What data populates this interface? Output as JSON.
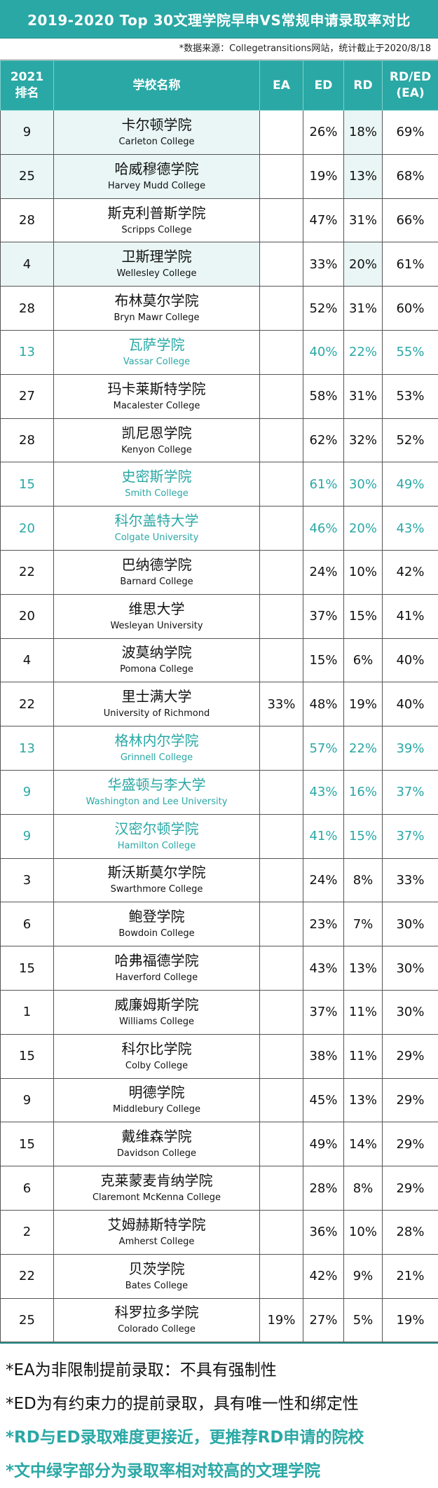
{
  "title": "2019-2020 Top 30文理学院早申VS常规申请录取率对比",
  "source": "*数据来源：Collegetransitions网站，统计截止于2020/8/18",
  "headers": {
    "rank_line1": "2021",
    "rank_line2": "排名",
    "name": "学校名称",
    "ea": "EA",
    "ed": "ED",
    "rd": "RD",
    "ratio_line1": "RD/ED",
    "ratio_line2": "(EA)"
  },
  "colors": {
    "teal": "#2aa8a5",
    "light_teal": "#e9f6f5"
  },
  "rows": [
    {
      "rank": "9",
      "cn": "卡尔顿学院",
      "en": "Carleton College",
      "ea": "",
      "ed": "26%",
      "rd": "18%",
      "ratio": "69%",
      "teal": false,
      "light": true
    },
    {
      "rank": "25",
      "cn": "哈威穆德学院",
      "en": "Harvey Mudd College",
      "ea": "",
      "ed": "19%",
      "rd": "13%",
      "ratio": "68%",
      "teal": false,
      "light": true
    },
    {
      "rank": "28",
      "cn": "斯克利普斯学院",
      "en": "Scripps College",
      "ea": "",
      "ed": "47%",
      "rd": "31%",
      "ratio": "66%",
      "teal": false,
      "light": false
    },
    {
      "rank": "4",
      "cn": "卫斯理学院",
      "en": "Wellesley College",
      "ea": "",
      "ed": "33%",
      "rd": "20%",
      "ratio": "61%",
      "teal": false,
      "light": true
    },
    {
      "rank": "28",
      "cn": "布林莫尔学院",
      "en": "Bryn Mawr College",
      "ea": "",
      "ed": "52%",
      "rd": "31%",
      "ratio": "60%",
      "teal": false,
      "light": false
    },
    {
      "rank": "13",
      "cn": "瓦萨学院",
      "en": "Vassar College",
      "ea": "",
      "ed": "40%",
      "rd": "22%",
      "ratio": "55%",
      "teal": true,
      "light": false
    },
    {
      "rank": "27",
      "cn": "玛卡莱斯特学院",
      "en": "Macalester College",
      "ea": "",
      "ed": "58%",
      "rd": "31%",
      "ratio": "53%",
      "teal": false,
      "light": false
    },
    {
      "rank": "28",
      "cn": "凯尼恩学院",
      "en": "Kenyon College",
      "ea": "",
      "ed": "62%",
      "rd": "32%",
      "ratio": "52%",
      "teal": false,
      "light": false
    },
    {
      "rank": "15",
      "cn": "史密斯学院",
      "en": "Smith College",
      "ea": "",
      "ed": "61%",
      "rd": "30%",
      "ratio": "49%",
      "teal": true,
      "light": false
    },
    {
      "rank": "20",
      "cn": "科尔盖特大学",
      "en": "Colgate University",
      "ea": "",
      "ed": "46%",
      "rd": "20%",
      "ratio": "43%",
      "teal": true,
      "light": false
    },
    {
      "rank": "22",
      "cn": "巴纳德学院",
      "en": "Barnard College",
      "ea": "",
      "ed": "24%",
      "rd": "10%",
      "ratio": "42%",
      "teal": false,
      "light": false
    },
    {
      "rank": "20",
      "cn": "维思大学",
      "en": "Wesleyan University",
      "ea": "",
      "ed": "37%",
      "rd": "15%",
      "ratio": "41%",
      "teal": false,
      "light": false
    },
    {
      "rank": "4",
      "cn": "波莫纳学院",
      "en": "Pomona College",
      "ea": "",
      "ed": "15%",
      "rd": "6%",
      "ratio": "40%",
      "teal": false,
      "light": false
    },
    {
      "rank": "22",
      "cn": "里士满大学",
      "en": "University of Richmond",
      "ea": "33%",
      "ed": "48%",
      "rd": "19%",
      "ratio": "40%",
      "teal": false,
      "light": false
    },
    {
      "rank": "13",
      "cn": "格林内尔学院",
      "en": "Grinnell College",
      "ea": "",
      "ed": "57%",
      "rd": "22%",
      "ratio": "39%",
      "teal": true,
      "light": false
    },
    {
      "rank": "9",
      "cn": "华盛顿与李大学",
      "en": "Washington and Lee University",
      "ea": "",
      "ed": "43%",
      "rd": "16%",
      "ratio": "37%",
      "teal": true,
      "light": false
    },
    {
      "rank": "9",
      "cn": "汉密尔顿学院",
      "en": "Hamilton College",
      "ea": "",
      "ed": "41%",
      "rd": "15%",
      "ratio": "37%",
      "teal": true,
      "light": false
    },
    {
      "rank": "3",
      "cn": "斯沃斯莫尔学院",
      "en": "Swarthmore College",
      "ea": "",
      "ed": "24%",
      "rd": "8%",
      "ratio": "33%",
      "teal": false,
      "light": false
    },
    {
      "rank": "6",
      "cn": "鲍登学院",
      "en": "Bowdoin College",
      "ea": "",
      "ed": "23%",
      "rd": "7%",
      "ratio": "30%",
      "teal": false,
      "light": false
    },
    {
      "rank": "15",
      "cn": "哈弗福德学院",
      "en": "Haverford College",
      "ea": "",
      "ed": "43%",
      "rd": "13%",
      "ratio": "30%",
      "teal": false,
      "light": false
    },
    {
      "rank": "1",
      "cn": "威廉姆斯学院",
      "en": "Williams College",
      "ea": "",
      "ed": "37%",
      "rd": "11%",
      "ratio": "30%",
      "teal": false,
      "light": false
    },
    {
      "rank": "15",
      "cn": "科尔比学院",
      "en": "Colby College",
      "ea": "",
      "ed": "38%",
      "rd": "11%",
      "ratio": "29%",
      "teal": false,
      "light": false
    },
    {
      "rank": "9",
      "cn": "明德学院",
      "en": "Middlebury College",
      "ea": "",
      "ed": "45%",
      "rd": "13%",
      "ratio": "29%",
      "teal": false,
      "light": false
    },
    {
      "rank": "15",
      "cn": "戴维森学院",
      "en": "Davidson College",
      "ea": "",
      "ed": "49%",
      "rd": "14%",
      "ratio": "29%",
      "teal": false,
      "light": false
    },
    {
      "rank": "6",
      "cn": "克莱蒙麦肯纳学院",
      "en": "Claremont McKenna College",
      "ea": "",
      "ed": "28%",
      "rd": "8%",
      "ratio": "29%",
      "teal": false,
      "light": false
    },
    {
      "rank": "2",
      "cn": "艾姆赫斯特学院",
      "en": "Amherst College",
      "ea": "",
      "ed": "36%",
      "rd": "10%",
      "ratio": "28%",
      "teal": false,
      "light": false
    },
    {
      "rank": "22",
      "cn": "贝茨学院",
      "en": "Bates College",
      "ea": "",
      "ed": "42%",
      "rd": "9%",
      "ratio": "21%",
      "teal": false,
      "light": false
    },
    {
      "rank": "25",
      "cn": "科罗拉多学院",
      "en": "Colorado College",
      "ea": "19%",
      "ed": "27%",
      "rd": "5%",
      "ratio": "19%",
      "teal": false,
      "light": false
    }
  ],
  "notes": [
    {
      "text": "*EA为非限制提前录取：不具有强制性",
      "teal": false
    },
    {
      "text": "*ED为有约束力的提前录取，具有唯一性和绑定性",
      "teal": false
    },
    {
      "text": "*RD与ED录取难度更接近，更推荐RD申请的院校",
      "teal": true
    },
    {
      "text": "*文中绿字部分为录取率相对较高的文理学院",
      "teal": true
    }
  ]
}
